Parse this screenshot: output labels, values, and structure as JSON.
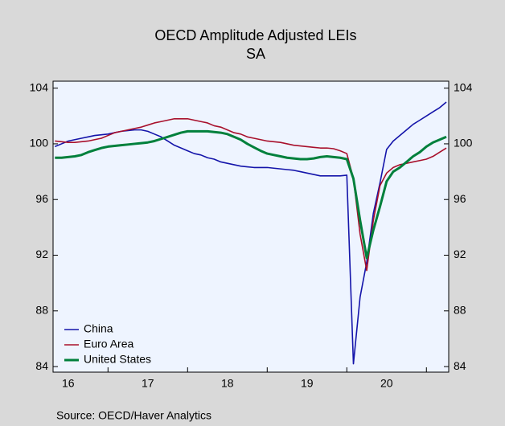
{
  "chart_data": {
    "type": "line",
    "title": "OECD Amplitude Adjusted LEIs",
    "subtitle": "SA",
    "source": "Source:   OECD/Haver Analytics",
    "x": [
      2016.333,
      2016.417,
      2016.5,
      2016.583,
      2016.667,
      2016.75,
      2016.833,
      2016.917,
      2017.0,
      2017.083,
      2017.167,
      2017.25,
      2017.333,
      2017.417,
      2017.5,
      2017.583,
      2017.667,
      2017.75,
      2017.833,
      2017.917,
      2018.0,
      2018.083,
      2018.167,
      2018.25,
      2018.333,
      2018.417,
      2018.5,
      2018.583,
      2018.667,
      2018.75,
      2018.833,
      2018.917,
      2019.0,
      2019.083,
      2019.167,
      2019.25,
      2019.333,
      2019.417,
      2019.5,
      2019.583,
      2019.667,
      2019.75,
      2019.833,
      2019.917,
      2020.0,
      2020.083,
      2020.167,
      2020.25,
      2020.333,
      2020.417,
      2020.5,
      2020.583,
      2020.667,
      2020.75,
      2020.833,
      2020.917,
      2021.0,
      2021.083,
      2021.167,
      2021.25
    ],
    "series": [
      {
        "name": "China",
        "color": "#1414aa",
        "width": 1.6,
        "values": [
          99.8,
          100.0,
          100.2,
          100.3,
          100.4,
          100.5,
          100.6,
          100.65,
          100.7,
          100.8,
          100.9,
          100.95,
          101.0,
          101.0,
          100.9,
          100.7,
          100.5,
          100.2,
          99.9,
          99.7,
          99.5,
          99.3,
          99.2,
          99.0,
          98.9,
          98.7,
          98.6,
          98.5,
          98.4,
          98.35,
          98.3,
          98.3,
          98.3,
          98.25,
          98.2,
          98.15,
          98.1,
          98.0,
          97.9,
          97.8,
          97.7,
          97.7,
          97.7,
          97.7,
          97.75,
          84.2,
          89.0,
          91.5,
          95.0,
          97.2,
          99.6,
          100.2,
          100.6,
          101.0,
          101.4,
          101.7,
          102.0,
          102.3,
          102.6,
          103.0
        ]
      },
      {
        "name": "Euro Area",
        "color": "#a8102c",
        "width": 1.6,
        "values": [
          100.2,
          100.15,
          100.1,
          100.1,
          100.15,
          100.2,
          100.3,
          100.4,
          100.6,
          100.8,
          100.9,
          101.0,
          101.1,
          101.2,
          101.35,
          101.5,
          101.6,
          101.7,
          101.8,
          101.8,
          101.8,
          101.7,
          101.6,
          101.5,
          101.3,
          101.2,
          101.0,
          100.8,
          100.7,
          100.5,
          100.4,
          100.3,
          100.2,
          100.15,
          100.1,
          100.0,
          99.9,
          99.85,
          99.8,
          99.75,
          99.7,
          99.7,
          99.65,
          99.5,
          99.3,
          97.5,
          93.5,
          90.9,
          94.5,
          97.0,
          97.9,
          98.3,
          98.5,
          98.6,
          98.7,
          98.8,
          98.9,
          99.1,
          99.4,
          99.7
        ]
      },
      {
        "name": "United States",
        "color": "#00803c",
        "width": 3,
        "values": [
          99.0,
          99.0,
          99.05,
          99.1,
          99.2,
          99.4,
          99.55,
          99.7,
          99.8,
          99.85,
          99.9,
          99.95,
          100.0,
          100.05,
          100.1,
          100.2,
          100.35,
          100.5,
          100.65,
          100.8,
          100.9,
          100.9,
          100.9,
          100.9,
          100.85,
          100.8,
          100.7,
          100.5,
          100.3,
          100.0,
          99.75,
          99.5,
          99.3,
          99.2,
          99.1,
          99.0,
          98.95,
          98.9,
          98.9,
          98.95,
          99.05,
          99.1,
          99.05,
          99.0,
          98.9,
          97.5,
          94.5,
          91.8,
          93.8,
          95.5,
          97.3,
          98.0,
          98.3,
          98.7,
          99.1,
          99.4,
          99.8,
          100.1,
          100.3,
          100.5
        ]
      }
    ],
    "xlim": [
      2016.31,
      2021.28
    ],
    "xticks": [
      {
        "value": 2016.5,
        "label": "16"
      },
      {
        "value": 2017.5,
        "label": "17"
      },
      {
        "value": 2018.5,
        "label": "18"
      },
      {
        "value": 2019.5,
        "label": "19"
      },
      {
        "value": 2020.5,
        "label": "20"
      }
    ],
    "x_minor_ticks": [
      2017,
      2018,
      2019,
      2020,
      2021
    ],
    "ylim": [
      83.6,
      104.5
    ],
    "yticks": [
      84,
      88,
      92,
      96,
      100,
      104
    ],
    "y2lim": [
      83.6,
      104.5
    ],
    "y2ticks": [
      84,
      88,
      92,
      96,
      100,
      104
    ],
    "legend": "lower left",
    "plot_background": "#eef4ff"
  }
}
